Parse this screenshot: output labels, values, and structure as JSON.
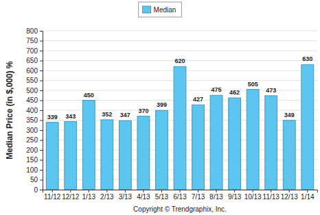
{
  "chart_data": {
    "type": "bar",
    "y_label": "Median Price (in $,000) %",
    "annotations": [
      "Copyright © Trendgraphix, Inc."
    ],
    "categories": [
      "11/12",
      "12/12",
      "1/13",
      "2/13",
      "3/13",
      "4/13",
      "5/13",
      "6/13",
      "7/13",
      "8/13",
      "9/13",
      "10/13",
      "11/13",
      "12/13",
      "1/14"
    ],
    "series": [
      {
        "name": "Median",
        "color": "#5cc6f0",
        "values": [
          339,
          343,
          450,
          352,
          347,
          370,
          399,
          620,
          427,
          475,
          462,
          505,
          473,
          349,
          630
        ]
      }
    ],
    "ylim": [
      0,
      800
    ],
    "yticks": [
      0,
      50,
      100,
      150,
      200,
      250,
      300,
      350,
      400,
      450,
      500,
      550,
      600,
      650,
      700,
      750,
      800
    ],
    "grid": true,
    "legend": "top",
    "data_labels": true
  }
}
